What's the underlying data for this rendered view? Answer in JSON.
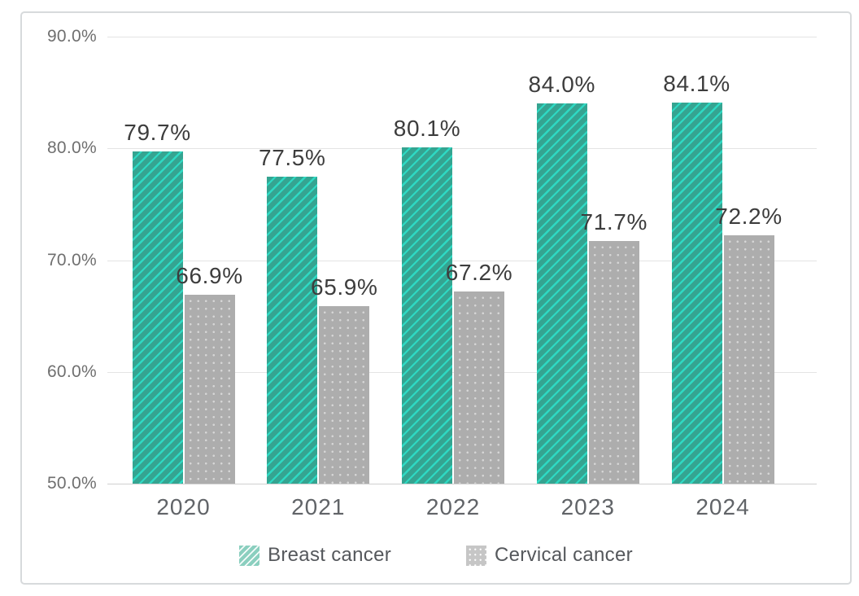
{
  "chart_data": {
    "type": "bar",
    "categories": [
      "2020",
      "2021",
      "2022",
      "2023",
      "2024"
    ],
    "series": [
      {
        "name": "Breast cancer",
        "values": [
          79.7,
          77.5,
          80.1,
          84.0,
          84.1
        ],
        "value_labels": [
          "79.7%",
          "77.5%",
          "80.1%",
          "84.0%",
          "84.1%"
        ],
        "bar_color": "#35a491",
        "pattern": "diagonal-stripes",
        "pattern_color": "#2ed9c3",
        "legend_swatch_color": "#8bcfbf"
      },
      {
        "name": "Cervical cancer",
        "values": [
          66.9,
          65.9,
          67.2,
          71.7,
          72.2
        ],
        "value_labels": [
          "66.9%",
          "65.9%",
          "67.2%",
          "71.7%",
          "72.2%"
        ],
        "bar_color": "#adadad",
        "pattern": "dots",
        "pattern_color": "#d6d6d6",
        "legend_swatch_color": "#c6c6c6"
      }
    ],
    "y_axis": {
      "min": 50,
      "max": 90,
      "ticks": [
        {
          "value": 90,
          "label": "90.0%"
        },
        {
          "value": 80,
          "label": "80.0%"
        },
        {
          "value": 70,
          "label": "70.0%"
        },
        {
          "value": 60,
          "label": "60.0%"
        },
        {
          "value": 50,
          "label": "50.0%"
        }
      ]
    },
    "legend": {
      "position": "bottom"
    },
    "grid": true,
    "style": {
      "grid_color": "#e4e4e4",
      "baseline_color": "#cfcfcf",
      "ytick_text_color": "#6f6f6f",
      "xtick_text_color": "#616468",
      "data_label_color": "#3d3d3d",
      "legend_text_color": "#55585c",
      "panel_border_color": "#d7dadc",
      "background_color": "#ffffff"
    }
  }
}
